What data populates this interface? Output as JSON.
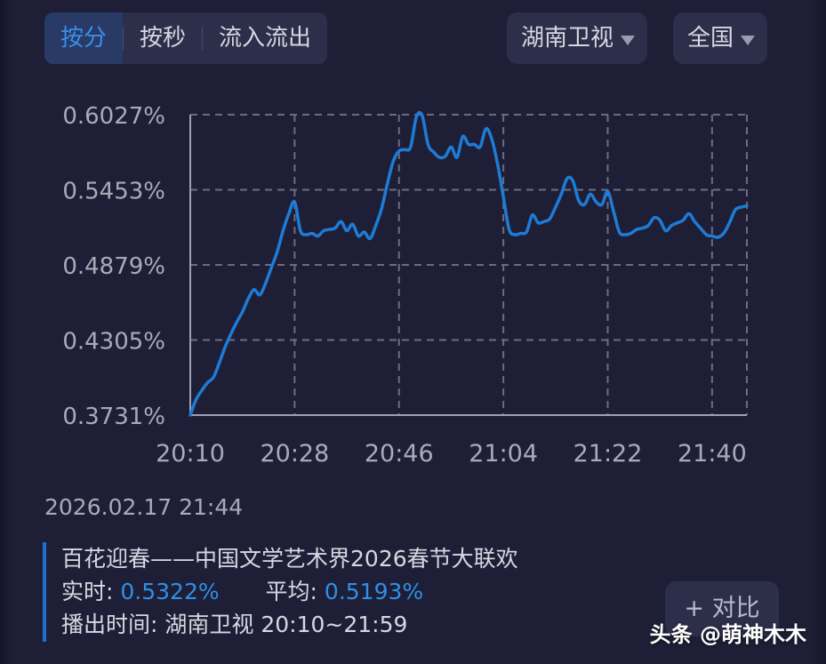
{
  "tabs": [
    {
      "label": "按分",
      "active": true
    },
    {
      "label": "按秒",
      "active": false
    },
    {
      "label": "流入流出",
      "active": false
    }
  ],
  "filters": {
    "channel": "湖南卫视",
    "region": "全国"
  },
  "colors": {
    "line": "#1e7bd6",
    "accent": "#2f8fe8",
    "background": "#1e1f36",
    "panel": "#2d2e49",
    "grid": "#6b6c80"
  },
  "chart_data": {
    "type": "line",
    "title": "",
    "xlabel": "",
    "ylabel": "",
    "y_ticks": [
      "0.6027%",
      "0.5453%",
      "0.4879%",
      "0.4305%",
      "0.3731%"
    ],
    "x_ticks": [
      "20:10",
      "20:28",
      "20:46",
      "21:04",
      "21:22",
      "21:40"
    ],
    "ylim": [
      0.3731,
      0.6027
    ],
    "x_range_minutes": [
      0,
      96
    ],
    "grid": true,
    "series": [
      {
        "x": [
          0,
          1,
          2,
          3,
          4,
          5,
          6,
          7,
          8,
          9,
          10,
          11,
          12,
          13,
          14,
          15,
          16,
          17,
          18,
          19,
          20,
          21,
          22,
          23,
          24,
          25,
          26,
          27,
          28,
          29,
          30,
          31,
          32,
          33,
          34,
          35,
          36,
          37,
          38,
          39,
          40,
          41,
          42,
          43,
          44,
          45,
          46,
          47,
          48,
          49,
          50,
          51,
          52,
          53,
          54,
          55,
          56,
          57,
          58,
          59,
          60,
          61,
          62,
          63,
          64,
          65,
          66,
          67,
          68,
          69,
          70,
          71,
          72,
          73,
          74,
          75,
          76,
          77,
          78,
          79,
          80,
          81,
          82,
          83,
          84,
          85,
          86,
          87,
          88,
          89,
          90,
          91,
          92,
          93,
          94,
          95,
          96
        ],
        "y": [
          0.3731,
          0.385,
          0.392,
          0.398,
          0.402,
          0.413,
          0.425,
          0.435,
          0.444,
          0.452,
          0.462,
          0.469,
          0.465,
          0.474,
          0.486,
          0.498,
          0.514,
          0.527,
          0.536,
          0.514,
          0.511,
          0.512,
          0.51,
          0.514,
          0.515,
          0.516,
          0.521,
          0.514,
          0.519,
          0.51,
          0.513,
          0.508,
          0.518,
          0.531,
          0.55,
          0.567,
          0.575,
          0.576,
          0.578,
          0.601,
          0.602,
          0.58,
          0.574,
          0.57,
          0.571,
          0.578,
          0.57,
          0.586,
          0.58,
          0.58,
          0.578,
          0.592,
          0.584,
          0.565,
          0.54,
          0.515,
          0.511,
          0.512,
          0.513,
          0.526,
          0.52,
          0.521,
          0.523,
          0.532,
          0.542,
          0.554,
          0.552,
          0.537,
          0.534,
          0.542,
          0.536,
          0.534,
          0.544,
          0.529,
          0.513,
          0.511,
          0.512,
          0.515,
          0.516,
          0.518,
          0.524,
          0.522,
          0.514,
          0.518,
          0.52,
          0.522,
          0.527,
          0.521,
          0.516,
          0.511,
          0.51,
          0.509,
          0.512,
          0.52,
          0.53,
          0.532,
          0.533
        ]
      }
    ]
  },
  "datetime": "2026.02.17 21:44",
  "program": {
    "title": "百花迎春——中国文学艺术界2026春节大联欢",
    "realtime_label": "实时:",
    "realtime_value": "0.5322%",
    "average_label": "平均:",
    "average_value": "0.5193%",
    "broadcast_label": "播出时间:",
    "broadcast_value": "湖南卫视 20:10~21:59"
  },
  "compare_button": "+ 对比",
  "watermark": "头条 @萌神木木"
}
